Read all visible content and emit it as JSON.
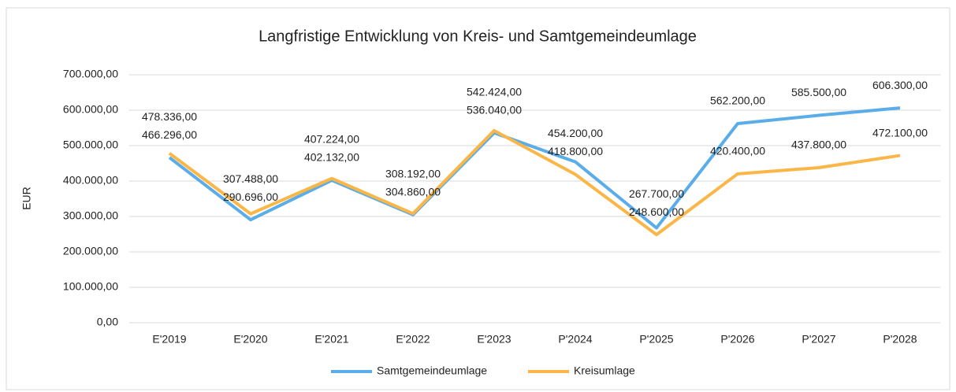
{
  "chart_data": {
    "type": "line",
    "title": "Langfristige Entwicklung von Kreis- und Samtgemeindeumlage",
    "y_label": "EUR",
    "categories": [
      "E'2019",
      "E'2020",
      "E'2021",
      "E'2022",
      "E'2023",
      "P'2024",
      "P'2025",
      "P'2026",
      "P'2027",
      "P'2028"
    ],
    "series": [
      {
        "name": "Samtgemeindeumlage",
        "color": "#5aade8",
        "values": [
          466296,
          290696,
          402132,
          304860,
          536040,
          454200,
          267700,
          562200,
          585500,
          606300
        ],
        "value_labels": [
          "466.296,00",
          "290.696,00",
          "402.132,00",
          "304.860,00",
          "536.040,00",
          "454.200,00",
          "267.700,00",
          "562.200,00",
          "585.500,00",
          "606.300,00"
        ]
      },
      {
        "name": "Kreisumlage",
        "color": "#fbb648",
        "values": [
          478336,
          307488,
          407224,
          308192,
          542424,
          418800,
          248600,
          420400,
          437800,
          472100
        ],
        "value_labels": [
          "478.336,00",
          "307.488,00",
          "407.224,00",
          "308.192,00",
          "542.424,00",
          "418.800,00",
          "248.600,00",
          "420.400,00",
          "437.800,00",
          "472.100,00"
        ]
      }
    ],
    "ylim": [
      0,
      700000
    ],
    "yticks": [
      {
        "value": 0,
        "label": "0,00"
      },
      {
        "value": 100000,
        "label": "100.000,00"
      },
      {
        "value": 200000,
        "label": "200.000,00"
      },
      {
        "value": 300000,
        "label": "300.000,00"
      },
      {
        "value": 400000,
        "label": "400.000,00"
      },
      {
        "value": 500000,
        "label": "500.000,00"
      },
      {
        "value": 600000,
        "label": "600.000,00"
      },
      {
        "value": 700000,
        "label": "700.000,00"
      }
    ],
    "grid": true,
    "legend": "bottom"
  }
}
